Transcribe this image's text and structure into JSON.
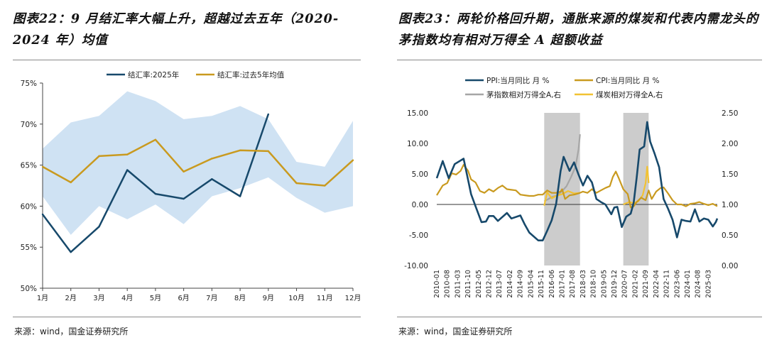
{
  "left": {
    "title": "图表22：9 月结汇率大幅上升，超越过去五年（2020-2024 年）均值",
    "source": "来源：wind，国金证券研究所",
    "chart_data": {
      "type": "line",
      "categories": [
        "1月",
        "2月",
        "3月",
        "4月",
        "5月",
        "6月",
        "7月",
        "8月",
        "9月",
        "10月",
        "11月",
        "12月"
      ],
      "ylim": [
        50,
        75
      ],
      "yticks": [
        50,
        55,
        60,
        65,
        70,
        75
      ],
      "ytick_labels": [
        "50%",
        "55%",
        "60%",
        "65%",
        "70%",
        "75%"
      ],
      "band": {
        "upper": [
          67.0,
          70.2,
          71.0,
          74.0,
          72.8,
          70.6,
          71.0,
          72.2,
          70.6,
          65.4,
          64.8,
          70.4
        ],
        "lower": [
          61.2,
          56.5,
          60.0,
          58.4,
          60.2,
          57.8,
          61.2,
          62.2,
          63.5,
          61.0,
          59.2,
          60.0
        ]
      },
      "series": [
        {
          "name": "结汇率:2025年",
          "color": "#17496b",
          "values": [
            59.0,
            54.4,
            57.5,
            64.4,
            61.5,
            60.9,
            63.3,
            61.2,
            71.2,
            null,
            null,
            null
          ]
        },
        {
          "name": "结汇率:过去5年均值",
          "color": "#c99a1f",
          "values": [
            64.8,
            62.9,
            66.1,
            66.3,
            68.1,
            64.2,
            65.8,
            66.8,
            66.7,
            62.8,
            62.5,
            65.6
          ]
        }
      ]
    }
  },
  "right": {
    "title": "图表23：两轮价格回升期，通胀来源的煤炭和代表内需龙头的茅指数均有相对万得全 A 超额收益",
    "source": "来源：wind，国金证券研究所",
    "chart_data": {
      "type": "line",
      "x_start": "2010-01",
      "x_end": "2025-09",
      "x_tick_labels": [
        "2010-01",
        "2010-08",
        "2011-03",
        "2011-10",
        "2012-05",
        "2012-12",
        "2013-07",
        "2014-02",
        "2014-09",
        "2015-04",
        "2015-11",
        "2016-06",
        "2017-01",
        "2017-08",
        "2018-03",
        "2018-10",
        "2019-05",
        "2019-12",
        "2020-07",
        "2021-02",
        "2021-09",
        "2022-04",
        "2022-11",
        "2023-06",
        "2024-01",
        "2024-08",
        "2025-03"
      ],
      "ylim_left": [
        -10,
        15
      ],
      "yticks_left": [
        "-10.00",
        "-5.00",
        "0.00",
        "5.00",
        "10.00",
        "15.00"
      ],
      "ylim_right": [
        0,
        2.5
      ],
      "yticks_right": [
        "0.00",
        "0.50",
        "1.00",
        "1.50",
        "2.00",
        "2.50"
      ],
      "shaded_periods": [
        [
          "2016-01",
          "2018-01"
        ],
        [
          "2020-06",
          "2021-11"
        ]
      ],
      "series": [
        {
          "name": "PPI:当月同比 月 %",
          "axis": "left",
          "color": "#17496b",
          "points": [
            [
              "2010-01",
              4.3
            ],
            [
              "2010-05",
              7.1
            ],
            [
              "2010-09",
              4.3
            ],
            [
              "2011-01",
              6.6
            ],
            [
              "2011-07",
              7.5
            ],
            [
              "2011-12",
              1.7
            ],
            [
              "2012-03",
              -0.3
            ],
            [
              "2012-07",
              -2.9
            ],
            [
              "2012-10",
              -2.8
            ],
            [
              "2012-12",
              -1.9
            ],
            [
              "2013-03",
              -1.9
            ],
            [
              "2013-06",
              -2.7
            ],
            [
              "2013-12",
              -1.4
            ],
            [
              "2014-03",
              -2.3
            ],
            [
              "2014-09",
              -1.8
            ],
            [
              "2014-12",
              -3.3
            ],
            [
              "2015-03",
              -4.6
            ],
            [
              "2015-09",
              -5.9
            ],
            [
              "2015-12",
              -5.9
            ],
            [
              "2016-03",
              -4.3
            ],
            [
              "2016-06",
              -2.6
            ],
            [
              "2016-09",
              0.1
            ],
            [
              "2016-12",
              5.5
            ],
            [
              "2017-02",
              7.8
            ],
            [
              "2017-06",
              5.5
            ],
            [
              "2017-09",
              6.9
            ],
            [
              "2017-12",
              4.9
            ],
            [
              "2018-03",
              3.1
            ],
            [
              "2018-06",
              4.7
            ],
            [
              "2018-09",
              3.6
            ],
            [
              "2018-12",
              0.9
            ],
            [
              "2019-03",
              0.4
            ],
            [
              "2019-06",
              0.0
            ],
            [
              "2019-10",
              -1.6
            ],
            [
              "2019-12",
              -0.5
            ],
            [
              "2020-02",
              -0.4
            ],
            [
              "2020-05",
              -3.7
            ],
            [
              "2020-08",
              -2.0
            ],
            [
              "2020-11",
              -1.5
            ],
            [
              "2021-01",
              0.3
            ],
            [
              "2021-03",
              4.4
            ],
            [
              "2021-05",
              9.0
            ],
            [
              "2021-08",
              9.5
            ],
            [
              "2021-10",
              13.5
            ],
            [
              "2021-12",
              10.3
            ],
            [
              "2022-03",
              8.3
            ],
            [
              "2022-06",
              6.1
            ],
            [
              "2022-09",
              0.9
            ],
            [
              "2022-12",
              -0.7
            ],
            [
              "2023-03",
              -2.5
            ],
            [
              "2023-06",
              -5.4
            ],
            [
              "2023-09",
              -2.5
            ],
            [
              "2023-12",
              -2.7
            ],
            [
              "2024-03",
              -2.8
            ],
            [
              "2024-06",
              -0.8
            ],
            [
              "2024-09",
              -2.8
            ],
            [
              "2024-12",
              -2.3
            ],
            [
              "2025-03",
              -2.5
            ],
            [
              "2025-06",
              -3.6
            ],
            [
              "2025-08",
              -2.9
            ],
            [
              "2025-09",
              -2.3
            ]
          ]
        },
        {
          "name": "CPI:当月同比 月 %",
          "axis": "left",
          "color": "#c99a1f",
          "points": [
            [
              "2010-01",
              1.5
            ],
            [
              "2010-05",
              3.1
            ],
            [
              "2010-08",
              3.5
            ],
            [
              "2010-11",
              5.1
            ],
            [
              "2011-02",
              4.9
            ],
            [
              "2011-05",
              5.5
            ],
            [
              "2011-07",
              6.5
            ],
            [
              "2011-10",
              5.5
            ],
            [
              "2011-12",
              4.1
            ],
            [
              "2012-03",
              3.6
            ],
            [
              "2012-06",
              2.2
            ],
            [
              "2012-09",
              1.9
            ],
            [
              "2012-12",
              2.5
            ],
            [
              "2013-03",
              2.1
            ],
            [
              "2013-06",
              2.7
            ],
            [
              "2013-09",
              3.1
            ],
            [
              "2013-12",
              2.5
            ],
            [
              "2014-03",
              2.4
            ],
            [
              "2014-06",
              2.3
            ],
            [
              "2014-09",
              1.6
            ],
            [
              "2014-12",
              1.5
            ],
            [
              "2015-03",
              1.4
            ],
            [
              "2015-06",
              1.4
            ],
            [
              "2015-09",
              1.6
            ],
            [
              "2015-12",
              1.6
            ],
            [
              "2016-03",
              2.3
            ],
            [
              "2016-06",
              1.9
            ],
            [
              "2016-09",
              1.9
            ],
            [
              "2016-12",
              2.1
            ],
            [
              "2017-01",
              2.5
            ],
            [
              "2017-03",
              0.9
            ],
            [
              "2017-06",
              1.5
            ],
            [
              "2017-09",
              1.6
            ],
            [
              "2017-12",
              1.8
            ],
            [
              "2018-03",
              2.1
            ],
            [
              "2018-06",
              1.9
            ],
            [
              "2018-09",
              2.5
            ],
            [
              "2018-12",
              1.9
            ],
            [
              "2019-03",
              2.3
            ],
            [
              "2019-06",
              2.7
            ],
            [
              "2019-09",
              3.0
            ],
            [
              "2019-11",
              4.5
            ],
            [
              "2020-01",
              5.4
            ],
            [
              "2020-03",
              4.3
            ],
            [
              "2020-06",
              2.5
            ],
            [
              "2020-09",
              1.7
            ],
            [
              "2020-11",
              -0.5
            ],
            [
              "2021-01",
              -0.3
            ],
            [
              "2021-03",
              0.4
            ],
            [
              "2021-06",
              1.1
            ],
            [
              "2021-09",
              0.7
            ],
            [
              "2021-11",
              2.3
            ],
            [
              "2022-01",
              0.9
            ],
            [
              "2022-04",
              2.1
            ],
            [
              "2022-07",
              2.7
            ],
            [
              "2022-09",
              2.8
            ],
            [
              "2022-12",
              1.8
            ],
            [
              "2023-03",
              0.7
            ],
            [
              "2023-06",
              0.0
            ],
            [
              "2023-09",
              0.0
            ],
            [
              "2023-12",
              -0.3
            ],
            [
              "2024-03",
              0.1
            ],
            [
              "2024-06",
              0.2
            ],
            [
              "2024-09",
              0.4
            ],
            [
              "2024-12",
              0.1
            ],
            [
              "2025-03",
              -0.1
            ],
            [
              "2025-06",
              0.1
            ],
            [
              "2025-09",
              -0.3
            ]
          ]
        },
        {
          "name": "茅指数相对万得全A,右",
          "axis": "right",
          "color": "#a6a6a6",
          "points": [
            [
              "2016-01",
              1.05
            ],
            [
              "2016-06",
              1.12
            ],
            [
              "2016-10",
              1.15
            ],
            [
              "2017-01",
              1.22
            ],
            [
              "2017-04",
              1.3
            ],
            [
              "2017-07",
              1.45
            ],
            [
              "2017-10",
              1.62
            ],
            [
              "2017-12",
              1.9
            ],
            [
              "2018-01",
              2.15
            ]
          ]
        },
        {
          "name": "煤炭相对万得全A,右",
          "axis": "right",
          "color": "#f2c233",
          "points": [
            [
              "2016-01",
              0.98
            ],
            [
              "2016-03",
              1.2
            ],
            [
              "2016-06",
              1.1
            ],
            [
              "2016-09",
              1.14
            ],
            [
              "2017-01",
              1.17
            ],
            [
              "2017-05",
              1.22
            ],
            [
              "2017-09",
              1.18
            ],
            [
              "2018-01",
              1.19
            ],
            [
              "2020-06",
              1.0
            ],
            [
              "2020-10",
              1.04
            ],
            [
              "2021-01",
              1.02
            ],
            [
              "2021-04",
              1.05
            ],
            [
              "2021-07",
              1.15
            ],
            [
              "2021-09",
              1.35
            ],
            [
              "2021-10",
              1.62
            ],
            [
              "2021-11",
              1.35
            ]
          ]
        }
      ]
    }
  }
}
